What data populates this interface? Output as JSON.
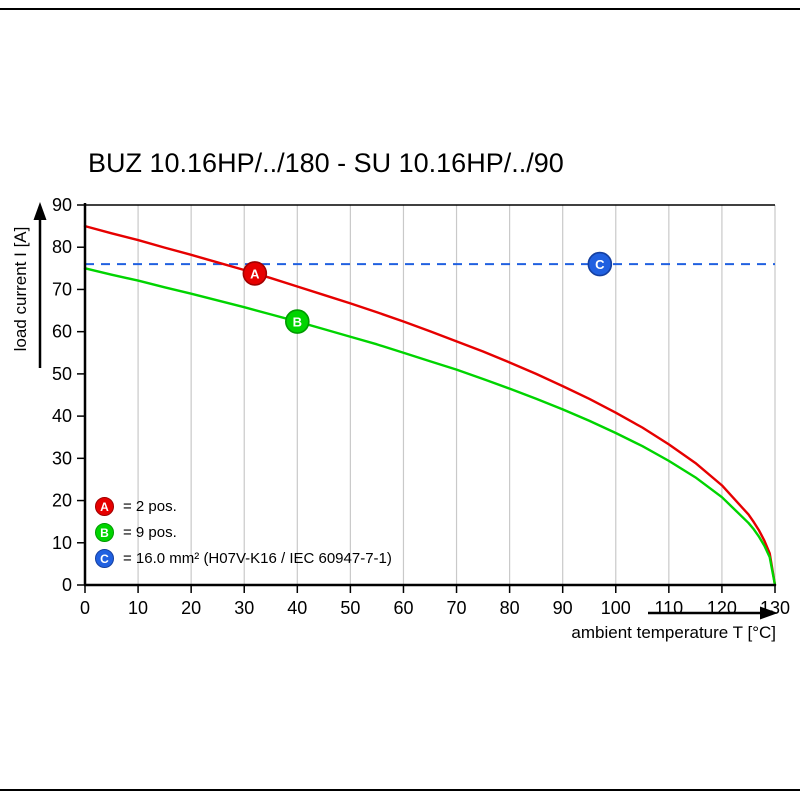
{
  "chart_data": {
    "type": "line",
    "title": "BUZ 10.16HP/../180 - SU 10.16HP/../90",
    "xlabel": "ambient temperature T [°C]",
    "ylabel": "load current I [A]",
    "xlim": [
      0,
      130
    ],
    "ylim": [
      0,
      90
    ],
    "x_ticks": [
      0,
      10,
      20,
      30,
      40,
      50,
      60,
      70,
      80,
      90,
      100,
      110,
      120,
      130
    ],
    "y_ticks": [
      0,
      10,
      20,
      30,
      40,
      50,
      60,
      70,
      80,
      90
    ],
    "grid": "vertical-only",
    "legend_position": "bottom-left-inside",
    "x": [
      0,
      5,
      10,
      15,
      20,
      25,
      30,
      35,
      40,
      45,
      50,
      55,
      60,
      65,
      70,
      75,
      80,
      85,
      90,
      95,
      100,
      105,
      110,
      115,
      120,
      125,
      126,
      127,
      128,
      129,
      130
    ],
    "series": [
      {
        "letter": "A",
        "name": "A = 2 pos.",
        "color": "#e60000",
        "values": [
          85.0,
          83.3,
          81.7,
          79.9,
          78.2,
          76.4,
          74.6,
          72.7,
          70.7,
          68.7,
          66.7,
          64.6,
          62.4,
          60.1,
          57.7,
          55.3,
          52.7,
          50.0,
          47.1,
          44.1,
          40.8,
          37.3,
          33.3,
          28.9,
          23.6,
          16.7,
          14.9,
          12.9,
          10.5,
          7.5,
          0
        ]
      },
      {
        "letter": "B",
        "name": "B = 9 pos.",
        "color": "#00d400",
        "values": [
          75.0,
          73.5,
          72.1,
          70.5,
          69.0,
          67.4,
          65.8,
          64.1,
          62.4,
          60.6,
          58.8,
          57.0,
          55.0,
          53.0,
          51.0,
          48.8,
          46.5,
          44.1,
          41.6,
          38.9,
          36.0,
          32.9,
          29.4,
          25.5,
          20.8,
          14.7,
          13.2,
          11.4,
          9.3,
          6.6,
          0
        ]
      }
    ],
    "reference_line": {
      "letter": "C",
      "y": 76,
      "style": "dashed",
      "color": "#2060e0",
      "label": "C = 16.0 mm² (H07V-K16 / IEC 60947-7-1)"
    },
    "markers": [
      {
        "letter": "A",
        "x": 32,
        "y": 73.8,
        "color": "#e60000",
        "stroke": "#a00000"
      },
      {
        "letter": "B",
        "x": 40,
        "y": 62.4,
        "color": "#00d400",
        "stroke": "#009a00"
      },
      {
        "letter": "C",
        "x": 97,
        "y": 76.0,
        "color": "#2060e0",
        "stroke": "#143fa0"
      }
    ],
    "legend": [
      {
        "letter": "A",
        "label": "= 2 pos.",
        "color": "#e60000",
        "stroke": "#a00000"
      },
      {
        "letter": "B",
        "label": "= 9 pos.",
        "color": "#00d400",
        "stroke": "#009a00"
      },
      {
        "letter": "C",
        "label": "= 16.0 mm² (H07V-K16 / IEC 60947-7-1)",
        "color": "#2060e0",
        "stroke": "#143fa0"
      }
    ],
    "colors": {
      "grid": "#c9c9c9",
      "axis": "#000000",
      "background": "#ffffff"
    }
  }
}
